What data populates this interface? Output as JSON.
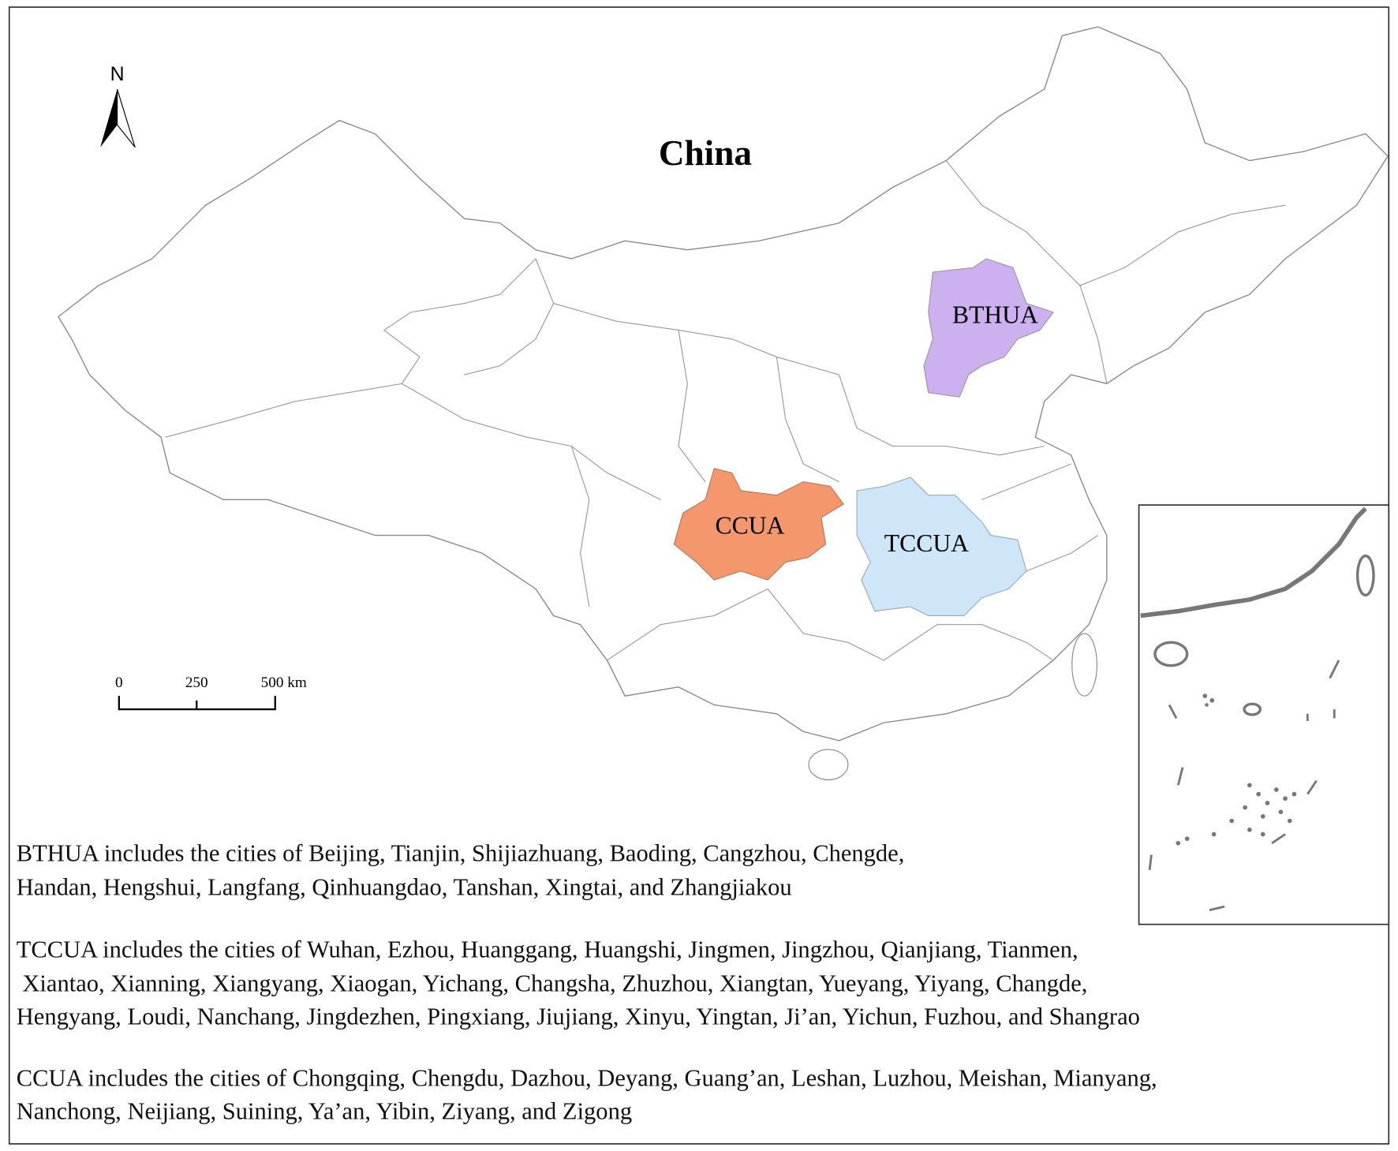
{
  "map": {
    "title": "China",
    "north": "N",
    "scale_bar": {
      "labels": [
        "0",
        "250",
        "500 km"
      ]
    },
    "regions": [
      {
        "label": "BTHUA",
        "color": "#cdb0f0"
      },
      {
        "label": "CCUA",
        "color": "#f4976c"
      },
      {
        "label": "TCCUA",
        "color": "#cfe5f8"
      }
    ]
  },
  "captions": [
    {
      "lines": [
        "BTHUA includes the cities of Beijing, Tianjin, Shijiazhuang, Baoding, Cangzhou, Chengde,",
        "Handan, Hengshui, Langfang, Qinhuangdao, Tanshan, Xingtai, and Zhangjiakou"
      ]
    },
    {
      "lines": [
        "TCCUA  includes the cities of Wuhan, Ezhou, Huanggang, Huangshi, Jingmen, Jingzhou, Qianjiang, Tianmen,",
        " Xiantao, Xianning, Xiangyang, Xiaogan, Yichang, Changsha, Zhuzhou, Xiangtan, Yueyang, Yiyang, Changde,",
        "Hengyang, Loudi, Nanchang, Jingdezhen, Pingxiang, Jiujiang, Xinyu, Yingtan, Ji’an, Yichun, Fuzhou, and Shangrao"
      ]
    },
    {
      "lines": [
        "CCUA includes the cities of Chongqing, Chengdu, Dazhou, Deyang, Guang’an, Leshan, Luzhou, Meishan, Mianyang,",
        "Nanchong, Neijiang, Suining, Ya’an, Yibin, Ziyang, and Zigong"
      ]
    }
  ]
}
